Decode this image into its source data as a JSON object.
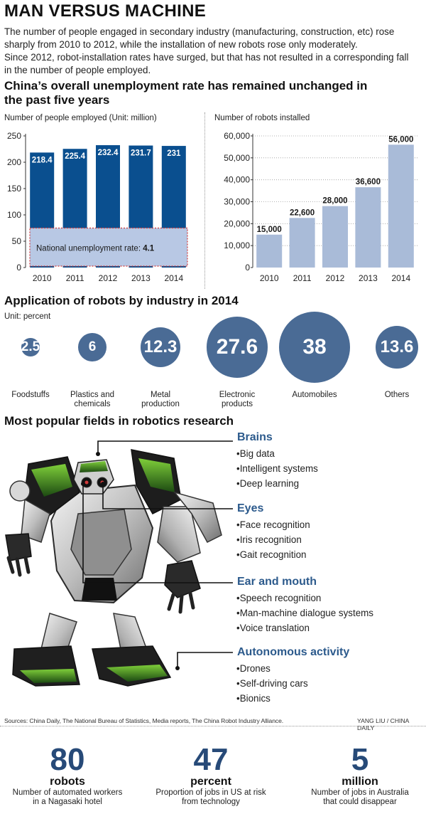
{
  "header": {
    "title": "MAN VERSUS MACHINE",
    "intro_lines": [
      "The number of people engaged in secondary industry (manufacturing, construction, etc) rose",
      "sharply from 2010 to 2012, while the installation of new robots rose only moderately.",
      "Since 2012, robot-installation rates have surged, but that has not resulted in a corresponding fall",
      "in the number of people employed."
    ]
  },
  "section1": {
    "title": "China’s overall unemployment rate has remained unchanged in the past five years"
  },
  "chart_data": [
    {
      "type": "bar",
      "ylabel": "Number of people employed (Unit: million)",
      "categories": [
        "2010",
        "2011",
        "2012",
        "2013",
        "2014"
      ],
      "values": [
        218.4,
        225.4,
        232.4,
        231.7,
        231
      ],
      "value_labels": [
        "218.4",
        "225.4",
        "232.4",
        "231.7",
        "231"
      ],
      "ylim": [
        0,
        250
      ],
      "yticks": [
        0,
        50,
        100,
        150,
        200,
        250
      ],
      "ytick_labels": [
        "0",
        "50",
        "100",
        "150",
        "200",
        "250"
      ],
      "bar_color": "#0a4f8f",
      "annotation": {
        "label": "National unemployment rate: ",
        "value": "4.1",
        "range": [
          0,
          75
        ],
        "fill": "#b8c8e4",
        "border": "#d23a3a"
      },
      "grid": false
    },
    {
      "type": "bar",
      "ylabel": "Number of robots installed",
      "categories": [
        "2010",
        "2011",
        "2012",
        "2013",
        "2014"
      ],
      "values": [
        15000,
        22600,
        28000,
        36600,
        56000
      ],
      "value_labels": [
        "15,000",
        "22,600",
        "28,000",
        "36,600",
        "56,000"
      ],
      "ylim": [
        0,
        60000
      ],
      "yticks": [
        0,
        10000,
        20000,
        30000,
        40000,
        50000,
        60000
      ],
      "ytick_labels": [
        "0",
        "10,000",
        "20,000",
        "30,000",
        "40,000",
        "50,000",
        "60,000"
      ],
      "bar_color": "#a9bbd8",
      "grid": "dotted-horizontal"
    },
    {
      "type": "bubble",
      "title": "Application of robots by industry in 2014",
      "unit": "Unit: percent",
      "color": "#4a6b95",
      "items": [
        {
          "value": 2.5,
          "label": "2.5",
          "name_lines": [
            "Foodstuffs"
          ]
        },
        {
          "value": 6,
          "label": "6",
          "name_lines": [
            "Plastics and",
            "chemicals"
          ]
        },
        {
          "value": 12.3,
          "label": "12.3",
          "name_lines": [
            "Metal",
            "production"
          ]
        },
        {
          "value": 27.6,
          "label": "27.6",
          "name_lines": [
            "Electronic",
            "products"
          ]
        },
        {
          "value": 38,
          "label": "38",
          "name_lines": [
            "Automobiles"
          ]
        },
        {
          "value": 13.6,
          "label": "13.6",
          "name_lines": [
            "Others"
          ]
        }
      ]
    }
  ],
  "section3": {
    "title": "Most popular fields in robotics research",
    "fields": [
      {
        "name": "Brains",
        "items": [
          "Big data",
          "Intelligent systems",
          "Deep learning"
        ]
      },
      {
        "name": "Eyes",
        "items": [
          "Face recognition",
          "Iris recognition",
          "Gait recognition"
        ]
      },
      {
        "name": "Ear and mouth",
        "items": [
          "Speech recognition",
          "Man-machine dialogue systems",
          "Voice translation"
        ]
      },
      {
        "name": "Autonomous activity",
        "items": [
          "Drones",
          "Self-driving cars",
          "Bionics"
        ]
      }
    ],
    "bullet": "•",
    "robot_icon": "humanoid-robot-illustration"
  },
  "footer": {
    "sources": "Sources: China Daily, The National Bureau of Statistics, Media reports, The China Robot Industry Alliance.",
    "credit": "YANG LIU / CHINA DAILY",
    "stats": [
      {
        "number": "80",
        "unit": "robots",
        "desc_lines": [
          "Number of automated workers",
          "in a Nagasaki hotel"
        ]
      },
      {
        "number": "47",
        "unit": "percent",
        "desc_lines": [
          "Proportion of jobs in US at risk",
          "from technology"
        ]
      },
      {
        "number": "5",
        "unit": "million",
        "desc_lines": [
          "Number of jobs in Australia",
          "that could disappear"
        ]
      }
    ]
  }
}
